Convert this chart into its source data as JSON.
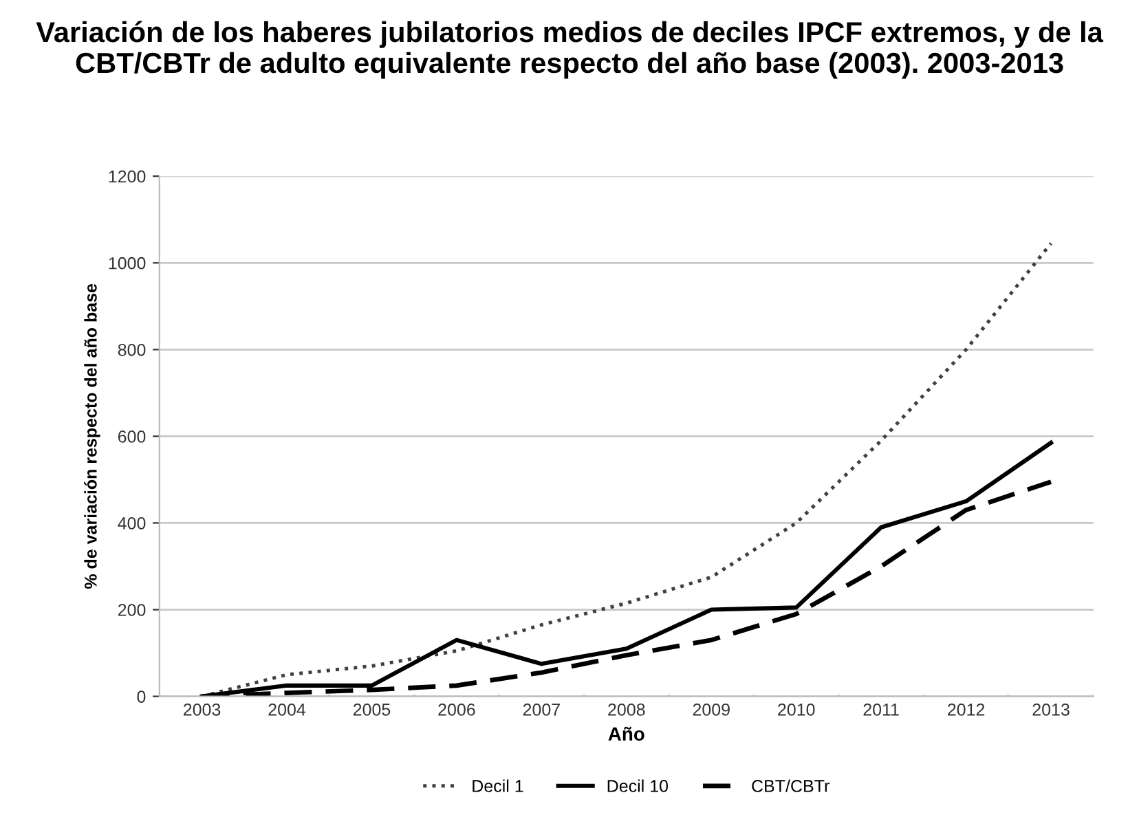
{
  "chart_data": {
    "type": "line",
    "title": "Variación de los haberes jubilatorios medios de deciles IPCF extremos, y de la CBT/CBTr de adulto equivalente respecto del año base (2003). 2003-2013",
    "xlabel": "Año",
    "ylabel": "% de variación respecto del año base",
    "categories": [
      "2003",
      "2004",
      "2005",
      "2006",
      "2007",
      "2008",
      "2009",
      "2010",
      "2011",
      "2012",
      "2013"
    ],
    "series": [
      {
        "name": "Decil 1",
        "color": "#404040",
        "line_style": "dotted",
        "values": [
          0,
          50,
          70,
          105,
          165,
          215,
          275,
          400,
          590,
          800,
          1045
        ]
      },
      {
        "name": "Decil 10",
        "color": "#000000",
        "line_style": "solid",
        "values": [
          0,
          25,
          25,
          130,
          75,
          110,
          200,
          205,
          390,
          450,
          585
        ]
      },
      {
        "name": "CBT/CBTr",
        "color": "#000000",
        "line_style": "dashed",
        "values": [
          0,
          8,
          15,
          25,
          55,
          95,
          130,
          190,
          300,
          430,
          495
        ]
      }
    ],
    "ylim": [
      0,
      1200
    ],
    "yticks": [
      0,
      200,
      400,
      600,
      800,
      1000,
      1200
    ],
    "grid": "y",
    "legend": "bottom",
    "marker": "none"
  }
}
